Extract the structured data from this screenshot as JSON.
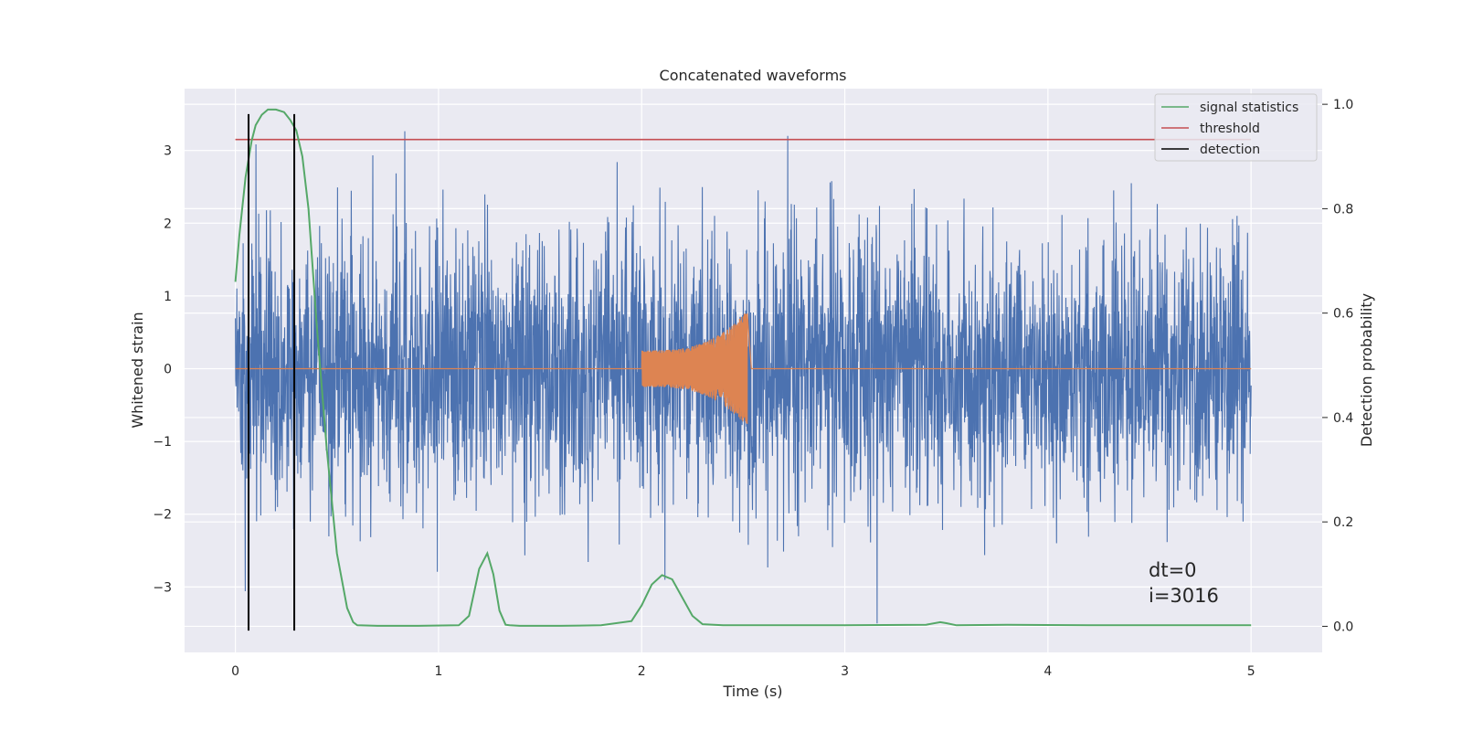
{
  "chart_data": {
    "type": "line",
    "title": "Concatenated waveforms",
    "xlabel": "Time (s)",
    "ylabel": "Whitened strain",
    "y2label": "Detection probability",
    "xlim": [
      -0.25,
      5.35
    ],
    "ylim": [
      -3.9,
      3.85
    ],
    "y2lim": [
      -0.05,
      1.03
    ],
    "xticks": [
      0,
      1,
      2,
      3,
      4,
      5
    ],
    "yticks": [
      -3,
      -2,
      -1,
      0,
      1,
      2,
      3
    ],
    "y2ticks": [
      0.0,
      0.2,
      0.4,
      0.6,
      0.8,
      1.0
    ],
    "xtick_labels": [
      "0",
      "1",
      "2",
      "3",
      "4",
      "5"
    ],
    "ytick_labels": [
      "−3",
      "−2",
      "−1",
      "0",
      "1",
      "2",
      "3"
    ],
    "y2tick_labels": [
      "0.0",
      "0.2",
      "0.4",
      "0.6",
      "0.8",
      "1.0"
    ],
    "grid": true,
    "legend_position": "top-right",
    "legend": [
      "signal statistics",
      "threshold",
      "detection"
    ],
    "series": [
      {
        "kind": "noise",
        "color": "#4c72b0",
        "x_range": [
          0,
          5
        ],
        "approx_amplitude": 3.5
      },
      {
        "kind": "chirp",
        "color": "#dd8452",
        "x_range": [
          2.0,
          2.52
        ],
        "start_amplitude": 0.25,
        "end_amplitude": 0.8
      },
      {
        "name": "signal statistics",
        "axis": "right",
        "color": "#55a868",
        "x": [
          0,
          0.02,
          0.05,
          0.08,
          0.1,
          0.13,
          0.16,
          0.2,
          0.24,
          0.27,
          0.3,
          0.33,
          0.36,
          0.4,
          0.45,
          0.5,
          0.55,
          0.58,
          0.6,
          0.7,
          0.9,
          1.1,
          1.15,
          1.2,
          1.24,
          1.27,
          1.3,
          1.33,
          1.35,
          1.4,
          1.6,
          1.8,
          1.95,
          2.0,
          2.05,
          2.1,
          2.15,
          2.2,
          2.25,
          2.3,
          2.4,
          2.6,
          3.0,
          3.4,
          3.47,
          3.5,
          3.55,
          3.8,
          4.2,
          4.6,
          5.0
        ],
        "y": [
          0.66,
          0.75,
          0.86,
          0.93,
          0.96,
          0.98,
          0.99,
          0.99,
          0.985,
          0.97,
          0.95,
          0.9,
          0.8,
          0.58,
          0.34,
          0.14,
          0.035,
          0.008,
          0.002,
          0.001,
          0.001,
          0.002,
          0.02,
          0.11,
          0.14,
          0.1,
          0.03,
          0.003,
          0.002,
          0.001,
          0.001,
          0.002,
          0.01,
          0.04,
          0.08,
          0.098,
          0.09,
          0.055,
          0.02,
          0.004,
          0.002,
          0.002,
          0.002,
          0.003,
          0.008,
          0.006,
          0.002,
          0.003,
          0.002,
          0.002,
          0.002
        ]
      },
      {
        "name": "threshold",
        "color": "#c44e52",
        "x": [
          0,
          5
        ],
        "y": [
          3.15,
          3.15
        ]
      },
      {
        "name": "detection",
        "color": "#000000",
        "x": [
          0.065,
          0.29
        ],
        "y_range": [
          -3.6,
          3.5
        ]
      }
    ],
    "annotations": [
      "dt=0",
      "i=3016"
    ]
  }
}
